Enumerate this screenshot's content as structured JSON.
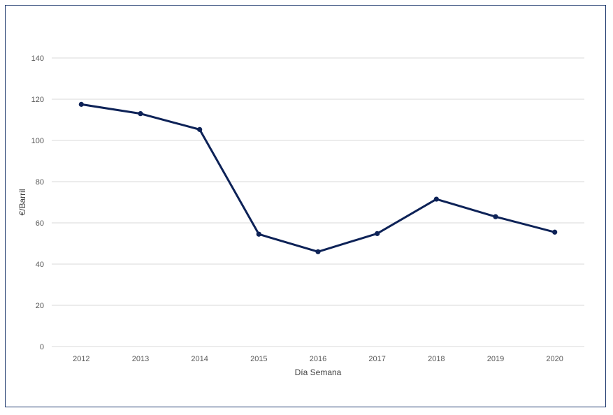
{
  "chart_data": {
    "type": "line",
    "title": "",
    "xlabel": "Día Semana",
    "ylabel": "€/Barril",
    "categories": [
      "2012",
      "2013",
      "2014",
      "2015",
      "2016",
      "2017",
      "2018",
      "2019",
      "2020"
    ],
    "series": [
      {
        "values": [
          117.5,
          113.0,
          105.3,
          54.5,
          46.0,
          54.8,
          71.5,
          63.0,
          55.5
        ],
        "color": "#0d2257"
      }
    ],
    "ylim": [
      0,
      140
    ],
    "yticks": [
      0,
      20,
      40,
      60,
      80,
      100,
      120,
      140
    ],
    "grid": true,
    "legend": "none"
  }
}
